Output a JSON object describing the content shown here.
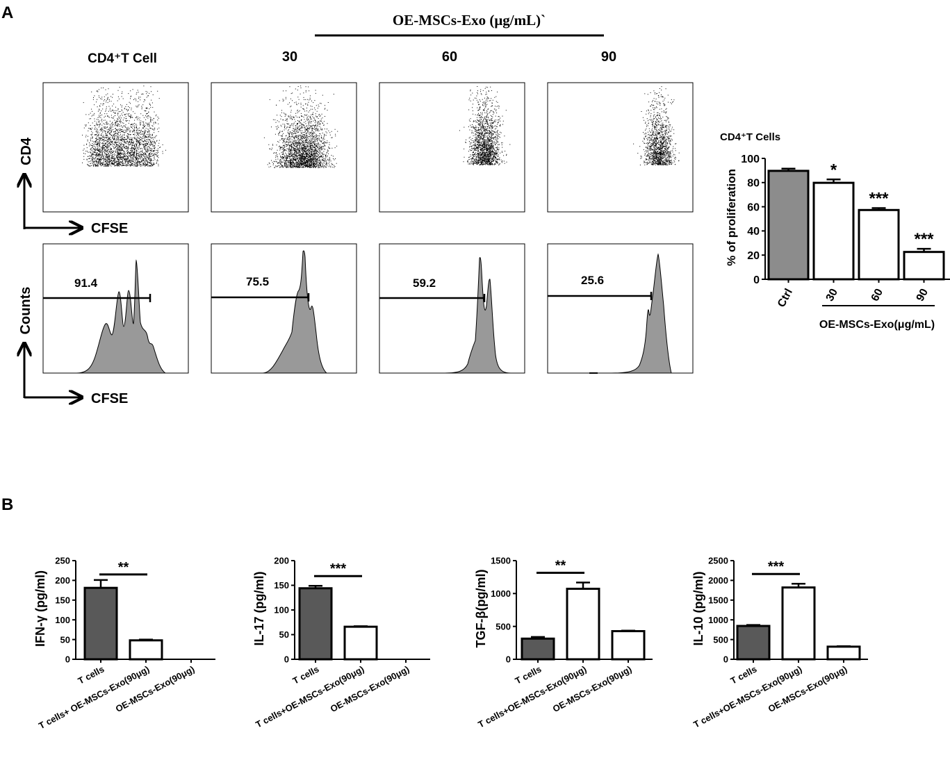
{
  "panel_labels": {
    "a": "A",
    "b": "B"
  },
  "panel_a": {
    "treatment_header": "OE-MSCs-Exo (μg/mL)`",
    "column_labels": [
      "CD4⁺T Cell",
      "30",
      "60",
      "90"
    ],
    "dot_axis": {
      "y": "CD4",
      "x": "CFSE"
    },
    "hist_axis": {
      "y": "Counts",
      "x": "CFSE"
    },
    "gate_values": [
      "91.4",
      "75.5",
      "59.2",
      "25.6"
    ]
  },
  "chart_data": [
    {
      "type": "bar",
      "title": "CD4⁺T Cells",
      "ylabel": "% of proliferation",
      "xlabel": "OE-MSCs-Exo(μg/mL)",
      "categories": [
        "Ctrl",
        "30",
        "60",
        "90"
      ],
      "values": [
        89.7,
        79.8,
        57.3,
        22.6
      ],
      "errors": [
        1.8,
        2.8,
        1.6,
        2.6
      ],
      "significance": [
        "",
        "*",
        "***",
        "***"
      ],
      "ylim": [
        0,
        100
      ],
      "yticks": [
        0,
        20,
        40,
        60,
        80,
        100
      ],
      "colors": [
        "#8c8c8c",
        "#ffffff",
        "#ffffff",
        "#ffffff"
      ]
    },
    {
      "type": "bar",
      "ylabel": "IFN-γ  (pg/ml)",
      "categories": [
        "T cells",
        "T cells+ OE-MSCs-Exo(90μg)",
        "OE-MSCs-Exo(90μg)"
      ],
      "values": [
        181,
        48,
        0
      ],
      "errors": [
        20,
        2,
        0
      ],
      "ylim": [
        0,
        250
      ],
      "yticks": [
        0,
        50,
        100,
        150,
        200,
        250
      ],
      "significance_label": "**",
      "colors": [
        "#595959",
        "#ffffff",
        "#ffffff"
      ]
    },
    {
      "type": "bar",
      "ylabel": "IL-17  (pg/ml)",
      "categories": [
        "T cells",
        "T cells+OE-MSCs-Exo(90μg)",
        "OE-MSCs-Exo(90μg)"
      ],
      "values": [
        144,
        66,
        0
      ],
      "errors": [
        5,
        1,
        0
      ],
      "ylim": [
        0,
        200
      ],
      "yticks": [
        0,
        50,
        100,
        150,
        200
      ],
      "significance_label": "***",
      "colors": [
        "#595959",
        "#ffffff",
        "#ffffff"
      ]
    },
    {
      "type": "bar",
      "ylabel": "TGF-β(pg/ml)",
      "categories": [
        "T cells",
        "T cells+OE-MSCs-Exo(90μg)",
        "OE-MSCs-Exo(90μg)"
      ],
      "values": [
        314,
        1072,
        428
      ],
      "errors": [
        25,
        95,
        8
      ],
      "ylim": [
        0,
        1500
      ],
      "yticks": [
        0,
        500,
        1000,
        1500
      ],
      "significance_label": "**",
      "colors": [
        "#595959",
        "#ffffff",
        "#ffffff"
      ]
    },
    {
      "type": "bar",
      "ylabel": "IL-10  (pg/ml)",
      "categories": [
        "T cells",
        "T cells+OE-MSCs-Exo(90μg)",
        "OE-MSCs-Exo(90μg)"
      ],
      "values": [
        845,
        1820,
        320
      ],
      "errors": [
        25,
        95,
        12
      ],
      "ylim": [
        0,
        2500
      ],
      "yticks": [
        0,
        500,
        1000,
        1500,
        2000,
        2500
      ],
      "significance_label": "***",
      "colors": [
        "#595959",
        "#ffffff",
        "#ffffff"
      ]
    }
  ]
}
